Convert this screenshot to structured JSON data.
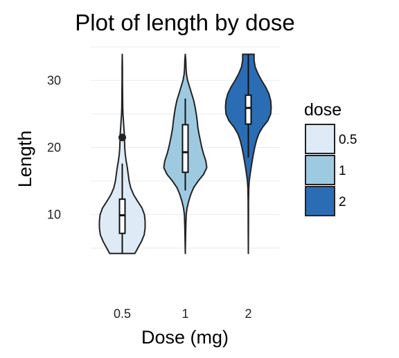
{
  "chart_data": {
    "type": "violin",
    "title": "Plot of length  by dose",
    "xlabel": "Dose (mg)",
    "ylabel": "Length",
    "categories": [
      "0.5",
      "1",
      "2"
    ],
    "ylim": [
      1.5,
      35.5
    ],
    "yticks": [
      10,
      20,
      30
    ],
    "grid": true,
    "legend": {
      "title": "dose",
      "position": "right",
      "entries": [
        "0.5",
        "1",
        "2"
      ]
    },
    "colors": [
      "#deebf7",
      "#9ecae1",
      "#2b6db4"
    ],
    "outline_color": "#222222",
    "series": [
      {
        "category": "0.5",
        "min": 4.2,
        "max": 33.9,
        "box": {
          "whisker_low": 4.2,
          "q1": 7.2,
          "median": 9.9,
          "q3": 12.3,
          "whisker_high": 17.6
        },
        "outliers": [
          21.5
        ],
        "density": [
          [
            4.2,
            0.55
          ],
          [
            5,
            0.68
          ],
          [
            6,
            0.84
          ],
          [
            7,
            0.96
          ],
          [
            8,
            1.0
          ],
          [
            9,
            1.0
          ],
          [
            10,
            0.97
          ],
          [
            11,
            0.86
          ],
          [
            12,
            0.67
          ],
          [
            13,
            0.49
          ],
          [
            14,
            0.37
          ],
          [
            15,
            0.3
          ],
          [
            16,
            0.26
          ],
          [
            17,
            0.22
          ],
          [
            18,
            0.17
          ],
          [
            19,
            0.13
          ],
          [
            20,
            0.11
          ],
          [
            21,
            0.1
          ],
          [
            22,
            0.09
          ],
          [
            23,
            0.07
          ],
          [
            24,
            0.05
          ],
          [
            25,
            0.03
          ],
          [
            26,
            0.02
          ],
          [
            28,
            0.015
          ],
          [
            30,
            0.01
          ],
          [
            32,
            0.008
          ],
          [
            33.9,
            0.0
          ]
        ]
      },
      {
        "category": "1",
        "min": 4.2,
        "max": 33.9,
        "box": {
          "whisker_low": 13.6,
          "q1": 16.3,
          "median": 19.3,
          "q3": 23.4,
          "whisker_high": 27.3
        },
        "outliers": [],
        "density": [
          [
            4.2,
            0.0
          ],
          [
            6,
            0.01
          ],
          [
            8,
            0.02
          ],
          [
            10,
            0.04
          ],
          [
            11,
            0.08
          ],
          [
            12,
            0.15
          ],
          [
            13,
            0.24
          ],
          [
            14,
            0.36
          ],
          [
            15,
            0.56
          ],
          [
            16,
            0.8
          ],
          [
            17,
            0.94
          ],
          [
            18,
            0.9
          ],
          [
            19,
            0.8
          ],
          [
            20,
            0.72
          ],
          [
            21,
            0.66
          ],
          [
            22,
            0.6
          ],
          [
            23,
            0.55
          ],
          [
            24,
            0.52
          ],
          [
            25,
            0.48
          ],
          [
            26,
            0.43
          ],
          [
            27,
            0.37
          ],
          [
            28,
            0.28
          ],
          [
            29,
            0.19
          ],
          [
            30,
            0.1
          ],
          [
            31,
            0.05
          ],
          [
            32,
            0.03
          ],
          [
            33,
            0.02
          ],
          [
            33.9,
            0.0
          ]
        ]
      },
      {
        "category": "2",
        "min": 4.2,
        "max": 33.9,
        "box": {
          "whisker_low": 18.5,
          "q1": 23.5,
          "median": 25.9,
          "q3": 27.8,
          "whisker_high": 33.9
        },
        "outliers": [],
        "density": [
          [
            4.2,
            0.0
          ],
          [
            8,
            0.005
          ],
          [
            12,
            0.01
          ],
          [
            14,
            0.02
          ],
          [
            15,
            0.04
          ],
          [
            16,
            0.08
          ],
          [
            17,
            0.12
          ],
          [
            18,
            0.17
          ],
          [
            19,
            0.22
          ],
          [
            20,
            0.28
          ],
          [
            21,
            0.35
          ],
          [
            22,
            0.45
          ],
          [
            23,
            0.62
          ],
          [
            24,
            0.85
          ],
          [
            25,
            0.98
          ],
          [
            26,
            1.0
          ],
          [
            27,
            0.98
          ],
          [
            28,
            0.9
          ],
          [
            29,
            0.76
          ],
          [
            30,
            0.58
          ],
          [
            31,
            0.42
          ],
          [
            32,
            0.3
          ],
          [
            33,
            0.25
          ],
          [
            33.9,
            0.25
          ]
        ]
      }
    ]
  }
}
